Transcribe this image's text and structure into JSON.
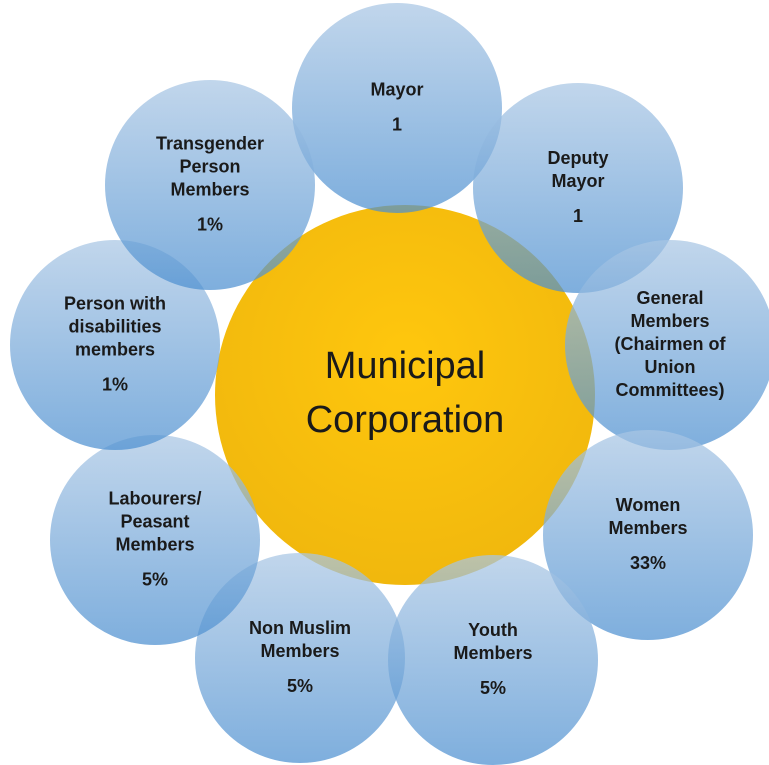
{
  "center": {
    "lines": [
      "Municipal",
      "Corporation"
    ]
  },
  "nodes": [
    {
      "lines": [
        "Mayor"
      ],
      "value": "1"
    },
    {
      "lines": [
        "Deputy",
        "Mayor"
      ],
      "value": "1"
    },
    {
      "lines": [
        "General",
        "Members",
        "(Chairmen of",
        "Union",
        "Committees)"
      ]
    },
    {
      "lines": [
        "Women",
        "Members"
      ],
      "value": "33%"
    },
    {
      "lines": [
        "Youth",
        "Members"
      ],
      "value": "5%"
    },
    {
      "lines": [
        "Non Muslim",
        "Members"
      ],
      "value": "5%"
    },
    {
      "lines": [
        "Labourers/",
        "Peasant",
        "Members"
      ],
      "value": "5%"
    },
    {
      "lines": [
        "Person with",
        "disabilities",
        "members"
      ],
      "value": "1%"
    },
    {
      "lines": [
        "Transgender",
        "Person",
        "Members"
      ],
      "value": "1%"
    }
  ]
}
